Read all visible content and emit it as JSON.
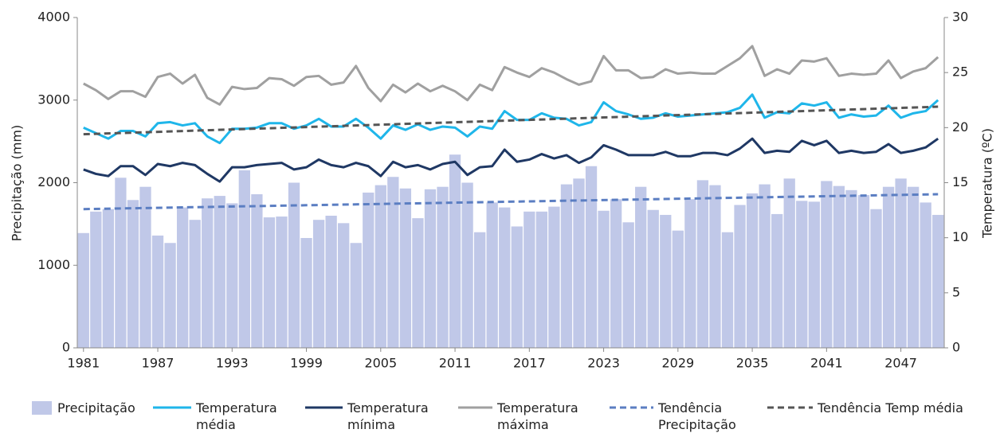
{
  "chart_data": {
    "type": "bar_line",
    "y_label": "Precipitação (mm)",
    "y2_label": "Temperatura (ºC)",
    "x": [
      1981,
      1982,
      1983,
      1984,
      1985,
      1986,
      1987,
      1988,
      1989,
      1990,
      1991,
      1992,
      1993,
      1994,
      1995,
      1996,
      1997,
      1998,
      1999,
      2000,
      2001,
      2002,
      2003,
      2004,
      2005,
      2006,
      2007,
      2008,
      2009,
      2010,
      2011,
      2012,
      2013,
      2014,
      2015,
      2016,
      2017,
      2018,
      2019,
      2020,
      2021,
      2022,
      2023,
      2024,
      2025,
      2026,
      2027,
      2028,
      2029,
      2030,
      2031,
      2032,
      2033,
      2034,
      2035,
      2036,
      2037,
      2038,
      2039,
      2040,
      2041,
      2042,
      2043,
      2044,
      2045,
      2046,
      2047,
      2048,
      2049,
      2050
    ],
    "xlim": [
      1980.5,
      2050.5
    ],
    "xticks": [
      1981,
      1987,
      1993,
      1999,
      2005,
      2011,
      2017,
      2023,
      2029,
      2035,
      2041,
      2047
    ],
    "ylim": [
      0,
      4000
    ],
    "yticks": [
      0,
      1000,
      2000,
      3000,
      4000
    ],
    "y2lim": [
      0,
      30
    ],
    "y2ticks": [
      0,
      5,
      10,
      15,
      20,
      25,
      30
    ],
    "series": [
      {
        "name": "Precipitação",
        "kind": "bar",
        "color": "#c0c8e8",
        "values": [
          1390,
          1650,
          1680,
          2060,
          1790,
          1950,
          1360,
          1270,
          1700,
          1550,
          1810,
          1840,
          1750,
          2150,
          1860,
          1580,
          1590,
          2000,
          1330,
          1550,
          1600,
          1510,
          1270,
          1880,
          1970,
          2070,
          1930,
          1570,
          1920,
          1950,
          2340,
          2000,
          1400,
          1760,
          1700,
          1470,
          1650,
          1650,
          1710,
          1980,
          2050,
          2200,
          1660,
          1800,
          1520,
          1950,
          1670,
          1610,
          1420,
          1800,
          2030,
          1970,
          1400,
          1730,
          1870,
          1980,
          1620,
          2050,
          1780,
          1770,
          2020,
          1960,
          1910,
          1850,
          1680,
          1950,
          2050,
          1950,
          1760,
          1610
        ]
      },
      {
        "name": "Temperatura média",
        "kind": "line",
        "axis": "y2",
        "color": "#1fb6ea",
        "values": [
          20.0,
          19.5,
          19.0,
          19.7,
          19.7,
          19.2,
          20.4,
          20.5,
          20.2,
          20.4,
          19.2,
          18.6,
          19.9,
          19.9,
          20.0,
          20.4,
          20.4,
          19.9,
          20.2,
          20.8,
          20.1,
          20.1,
          20.8,
          20.0,
          19.0,
          20.2,
          19.8,
          20.3,
          19.8,
          20.1,
          20.0,
          19.2,
          20.1,
          19.9,
          21.5,
          20.7,
          20.7,
          21.3,
          20.9,
          20.8,
          20.2,
          20.5,
          22.3,
          21.5,
          21.2,
          20.8,
          20.9,
          21.3,
          21.0,
          21.1,
          21.2,
          21.3,
          21.4,
          21.8,
          23.0,
          20.9,
          21.4,
          21.3,
          22.2,
          22.0,
          22.3,
          20.9,
          21.2,
          21.0,
          21.1,
          22.0,
          20.9,
          21.3,
          21.5,
          22.5
        ]
      },
      {
        "name": "Temperatura mínima",
        "kind": "line",
        "axis": "y2",
        "color": "#1f3864",
        "values": [
          16.2,
          15.8,
          15.6,
          16.5,
          16.5,
          15.7,
          16.7,
          16.5,
          16.8,
          16.6,
          15.8,
          15.1,
          16.4,
          16.4,
          16.6,
          16.7,
          16.8,
          16.2,
          16.4,
          17.1,
          16.6,
          16.4,
          16.8,
          16.5,
          15.6,
          16.9,
          16.4,
          16.6,
          16.2,
          16.7,
          16.9,
          15.7,
          16.4,
          16.5,
          18.0,
          16.9,
          17.1,
          17.6,
          17.2,
          17.5,
          16.8,
          17.3,
          18.4,
          18.0,
          17.5,
          17.5,
          17.5,
          17.8,
          17.4,
          17.4,
          17.7,
          17.7,
          17.5,
          18.1,
          19.0,
          17.7,
          17.9,
          17.8,
          18.8,
          18.4,
          18.8,
          17.7,
          17.9,
          17.7,
          17.8,
          18.5,
          17.7,
          17.9,
          18.2,
          19.0
        ]
      },
      {
        "name": "Temperatura máxima",
        "kind": "line",
        "axis": "y2",
        "color": "#a0a0a0",
        "values": [
          24.0,
          23.4,
          22.6,
          23.3,
          23.3,
          22.8,
          24.6,
          24.9,
          24.0,
          24.8,
          22.7,
          22.1,
          23.7,
          23.5,
          23.6,
          24.5,
          24.4,
          23.8,
          24.6,
          24.7,
          23.9,
          24.1,
          25.6,
          23.6,
          22.4,
          23.9,
          23.2,
          24.0,
          23.3,
          23.8,
          23.3,
          22.5,
          23.9,
          23.4,
          25.5,
          25.0,
          24.6,
          25.4,
          25.0,
          24.4,
          23.9,
          24.2,
          26.5,
          25.2,
          25.2,
          24.5,
          24.6,
          25.3,
          24.9,
          25.0,
          24.9,
          24.9,
          25.6,
          26.3,
          27.4,
          24.7,
          25.3,
          24.9,
          26.1,
          26.0,
          26.3,
          24.7,
          24.9,
          24.8,
          24.9,
          26.1,
          24.5,
          25.1,
          25.4,
          26.4
        ]
      },
      {
        "name": "Tendência Precipitação",
        "kind": "trend",
        "color": "#5b7ec2",
        "x": [
          1981,
          2050
        ],
        "values": [
          1680,
          1860
        ]
      },
      {
        "name": "Tendência Temp média",
        "kind": "trend",
        "axis": "y2",
        "color": "#555555",
        "x": [
          1981,
          2050
        ],
        "values": [
          19.4,
          21.9
        ]
      }
    ]
  }
}
